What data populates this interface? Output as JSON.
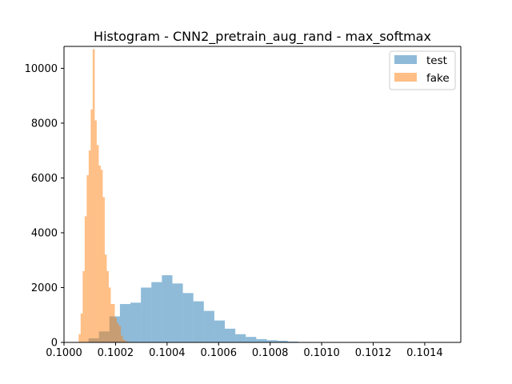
{
  "chart_data": {
    "type": "histogram",
    "title": "Histogram - CNN2_pretrain_aug_rand - max_softmax",
    "xlabel": "",
    "ylabel": "",
    "xlim": [
      0.1,
      0.10154
    ],
    "ylim": [
      0,
      10800
    ],
    "xticks": [
      {
        "value": 0.1,
        "label": "0.1000"
      },
      {
        "value": 0.1002,
        "label": "0.1002"
      },
      {
        "value": 0.1004,
        "label": "0.1004"
      },
      {
        "value": 0.1006,
        "label": "0.1006"
      },
      {
        "value": 0.1008,
        "label": "0.1008"
      },
      {
        "value": 0.101,
        "label": "0.1010"
      },
      {
        "value": 0.1012,
        "label": "0.1012"
      },
      {
        "value": 0.1014,
        "label": "0.1014"
      }
    ],
    "yticks": [
      {
        "value": 0,
        "label": "0"
      },
      {
        "value": 2000,
        "label": "2000"
      },
      {
        "value": 4000,
        "label": "4000"
      },
      {
        "value": 6000,
        "label": "6000"
      },
      {
        "value": 8000,
        "label": "8000"
      },
      {
        "value": 10000,
        "label": "10000"
      }
    ],
    "grid": false,
    "legend_position": "top-right",
    "series": [
      {
        "name": "test",
        "color": "#1f77b4",
        "opacity": 0.5,
        "bin_start": 0.100095,
        "bin_width": 4.07e-05,
        "counts": [
          150,
          400,
          950,
          1400,
          1450,
          2000,
          2200,
          2450,
          2150,
          1800,
          1500,
          1150,
          800,
          500,
          300,
          200,
          120,
          80,
          60,
          30,
          15,
          8,
          5,
          3,
          2,
          1,
          1,
          1,
          1,
          1,
          1,
          1
        ]
      },
      {
        "name": "fake",
        "color": "#ff7f0e",
        "opacity": 0.5,
        "bin_start": 0.1000568,
        "bin_width": 7.8e-06,
        "counts": [
          300,
          1050,
          2600,
          4600,
          6100,
          7000,
          8500,
          10700,
          8100,
          7200,
          6450,
          6300,
          5300,
          3200,
          2600,
          2000,
          1400,
          1400,
          900,
          700,
          600,
          250,
          100,
          50,
          30,
          15,
          8,
          5,
          3,
          2
        ]
      }
    ]
  }
}
